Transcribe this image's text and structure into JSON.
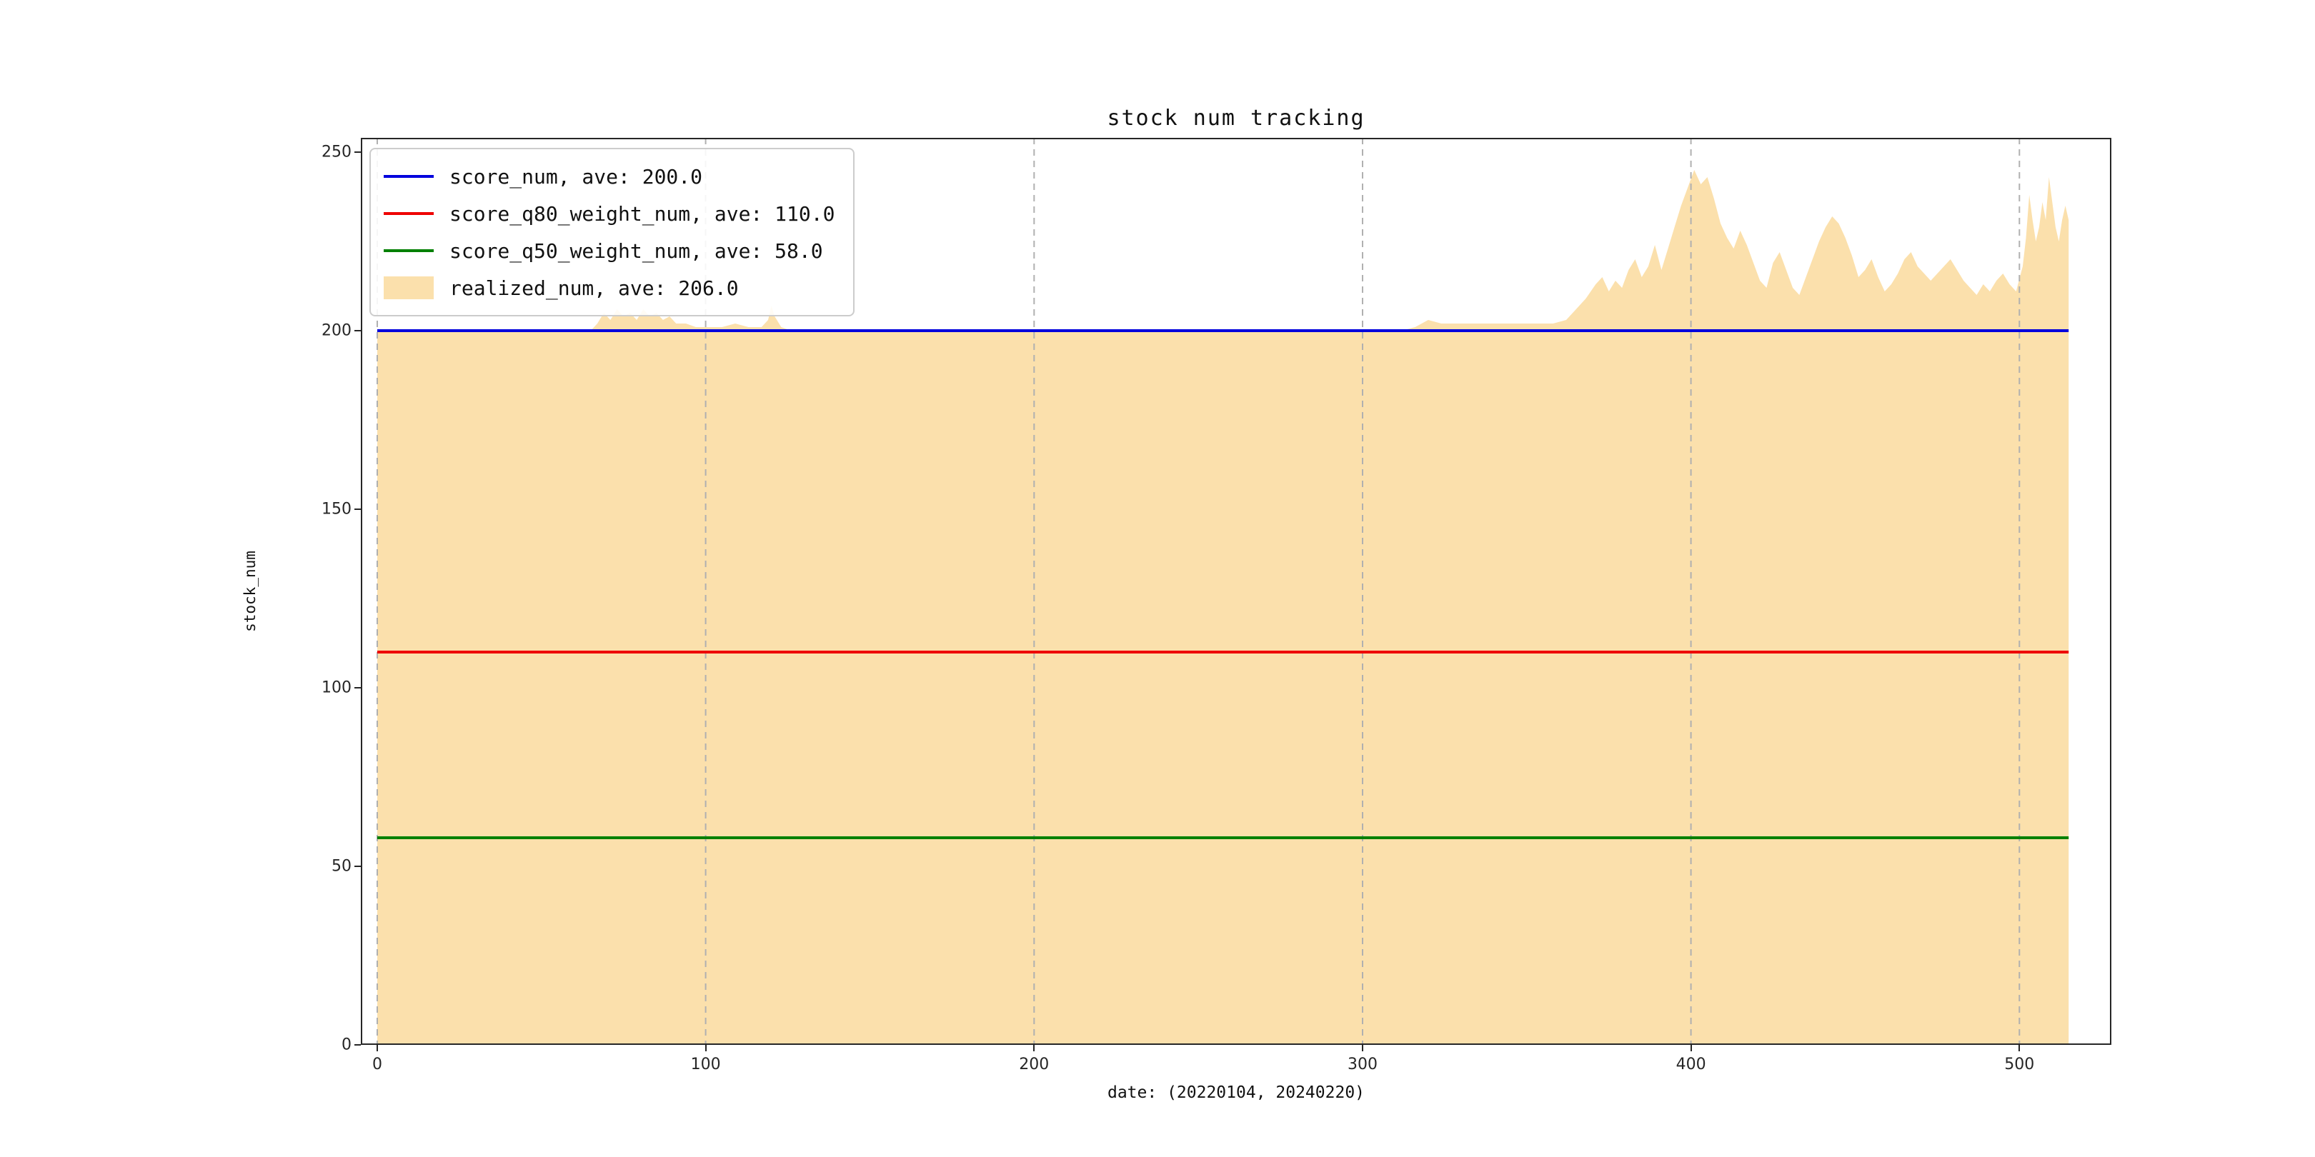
{
  "figure": {
    "background": "#ffffff"
  },
  "chart_data": {
    "type": "area",
    "title": "stock num tracking",
    "xlabel": "date: (20220104, 20240220)",
    "ylabel": "stock_num",
    "xlim": [
      -5,
      528
    ],
    "ylim": [
      0,
      254
    ],
    "xticks": [
      0,
      100,
      200,
      300,
      400,
      500
    ],
    "yticks": [
      0,
      50,
      100,
      150,
      200,
      250
    ],
    "grid": {
      "axis": "x",
      "style": "dashed",
      "color": "#b0b0b0"
    },
    "axes_color": "#262626",
    "hline_x_range": [
      0,
      515
    ],
    "legend": {
      "position": "upper-left",
      "entries": [
        {
          "type": "line",
          "color": "#0000dd",
          "label": "score_num, ave: 200.0"
        },
        {
          "type": "line",
          "color": "#ee0000",
          "label": "score_q80_weight_num, ave: 110.0"
        },
        {
          "type": "line",
          "color": "#008000",
          "label": "score_q50_weight_num, ave: 58.0"
        },
        {
          "type": "patch",
          "color": "#fbe0ac",
          "label": "realized_num, ave: 206.0"
        }
      ]
    },
    "series": [
      {
        "name": "score_num",
        "type": "hline",
        "y": 200,
        "ave": 200.0,
        "color": "#0000dd"
      },
      {
        "name": "score_q80_weight_num",
        "type": "hline",
        "y": 110,
        "ave": 110.0,
        "color": "#ee0000"
      },
      {
        "name": "score_q50_weight_num",
        "type": "hline",
        "y": 58,
        "ave": 58.0,
        "color": "#008000"
      },
      {
        "name": "realized_num",
        "type": "area",
        "ave": 206.0,
        "color": "#fbe0ac",
        "points": [
          [
            0,
            200
          ],
          [
            65,
            200
          ],
          [
            67,
            202
          ],
          [
            69,
            205
          ],
          [
            71,
            203
          ],
          [
            73,
            206
          ],
          [
            75,
            204
          ],
          [
            77,
            205
          ],
          [
            79,
            203
          ],
          [
            81,
            206
          ],
          [
            83,
            204
          ],
          [
            85,
            205
          ],
          [
            87,
            203
          ],
          [
            89,
            204
          ],
          [
            91,
            202
          ],
          [
            94,
            202
          ],
          [
            97,
            201
          ],
          [
            101,
            201
          ],
          [
            105,
            201
          ],
          [
            109,
            202
          ],
          [
            113,
            201
          ],
          [
            117,
            201
          ],
          [
            119,
            203
          ],
          [
            120,
            207
          ],
          [
            121,
            204
          ],
          [
            123,
            201
          ],
          [
            126,
            200
          ],
          [
            150,
            200
          ],
          [
            200,
            200
          ],
          [
            250,
            200
          ],
          [
            300,
            200
          ],
          [
            312,
            200
          ],
          [
            316,
            201
          ],
          [
            320,
            203
          ],
          [
            324,
            202
          ],
          [
            330,
            202
          ],
          [
            340,
            202
          ],
          [
            350,
            202
          ],
          [
            358,
            202
          ],
          [
            362,
            203
          ],
          [
            365,
            206
          ],
          [
            368,
            209
          ],
          [
            371,
            213
          ],
          [
            373,
            215
          ],
          [
            375,
            211
          ],
          [
            377,
            214
          ],
          [
            379,
            212
          ],
          [
            381,
            217
          ],
          [
            383,
            220
          ],
          [
            385,
            215
          ],
          [
            387,
            218
          ],
          [
            389,
            224
          ],
          [
            391,
            217
          ],
          [
            393,
            223
          ],
          [
            395,
            229
          ],
          [
            397,
            235
          ],
          [
            399,
            240
          ],
          [
            401,
            245
          ],
          [
            403,
            241
          ],
          [
            405,
            243
          ],
          [
            407,
            237
          ],
          [
            409,
            230
          ],
          [
            411,
            226
          ],
          [
            413,
            223
          ],
          [
            415,
            228
          ],
          [
            417,
            224
          ],
          [
            419,
            219
          ],
          [
            421,
            214
          ],
          [
            423,
            212
          ],
          [
            425,
            219
          ],
          [
            427,
            222
          ],
          [
            429,
            217
          ],
          [
            431,
            212
          ],
          [
            433,
            210
          ],
          [
            435,
            215
          ],
          [
            437,
            220
          ],
          [
            439,
            225
          ],
          [
            441,
            229
          ],
          [
            443,
            232
          ],
          [
            445,
            230
          ],
          [
            447,
            226
          ],
          [
            449,
            221
          ],
          [
            451,
            215
          ],
          [
            453,
            217
          ],
          [
            455,
            220
          ],
          [
            457,
            215
          ],
          [
            459,
            211
          ],
          [
            461,
            213
          ],
          [
            463,
            216
          ],
          [
            465,
            220
          ],
          [
            467,
            222
          ],
          [
            469,
            218
          ],
          [
            471,
            216
          ],
          [
            473,
            214
          ],
          [
            475,
            216
          ],
          [
            477,
            218
          ],
          [
            479,
            220
          ],
          [
            481,
            217
          ],
          [
            483,
            214
          ],
          [
            485,
            212
          ],
          [
            487,
            210
          ],
          [
            489,
            213
          ],
          [
            491,
            211
          ],
          [
            493,
            214
          ],
          [
            495,
            216
          ],
          [
            497,
            213
          ],
          [
            499,
            211
          ],
          [
            501,
            218
          ],
          [
            502,
            226
          ],
          [
            503,
            238
          ],
          [
            504,
            231
          ],
          [
            505,
            225
          ],
          [
            506,
            229
          ],
          [
            507,
            236
          ],
          [
            508,
            231
          ],
          [
            509,
            243
          ],
          [
            510,
            236
          ],
          [
            511,
            229
          ],
          [
            512,
            225
          ],
          [
            513,
            231
          ],
          [
            514,
            235
          ],
          [
            515,
            231
          ]
        ]
      }
    ]
  }
}
